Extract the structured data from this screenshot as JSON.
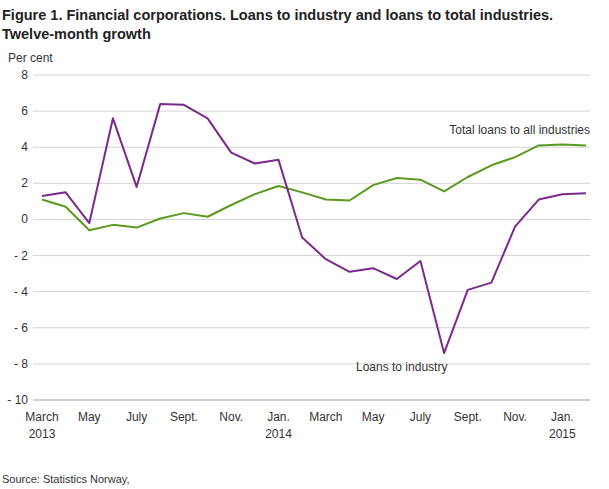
{
  "chart_data": {
    "type": "line",
    "title": "Figure 1. Financial corporations. Loans to industry and loans to total industries.",
    "subtitle": "Twelve-month growth",
    "y_label": "Per cent",
    "source": "Source: Statistics Norway,",
    "categories": [
      "March 2013",
      null,
      "May",
      null,
      "July",
      null,
      "Sept.",
      null,
      "Nov.",
      null,
      "Jan. 2014",
      null,
      "March",
      null,
      "May",
      null,
      "July",
      null,
      "Sept.",
      null,
      "Nov.",
      null,
      "Jan. 2015",
      null
    ],
    "series": [
      {
        "name": "Total loans to all industries",
        "color": "#5a9a1e",
        "values": [
          1.1,
          0.7,
          -0.6,
          -0.3,
          -0.45,
          0.05,
          0.35,
          0.15,
          0.8,
          1.4,
          1.85,
          1.5,
          1.1,
          1.05,
          1.9,
          2.3,
          2.2,
          1.55,
          2.35,
          3.0,
          3.45,
          4.1,
          4.15,
          4.1
        ]
      },
      {
        "name": "Loans to industry",
        "color": "#7b2a8c",
        "values": [
          1.3,
          1.5,
          -0.2,
          5.6,
          1.8,
          6.4,
          6.35,
          5.6,
          3.7,
          3.1,
          3.3,
          -1.0,
          -2.2,
          -2.9,
          -2.7,
          -3.3,
          -2.3,
          -7.4,
          -3.9,
          -3.5,
          -0.4,
          1.1,
          1.4,
          1.45
        ]
      }
    ],
    "ylim": [
      -10,
      8
    ],
    "yticks": [
      {
        "value": -10,
        "label": "- 10"
      },
      {
        "value": -8,
        "label": "- 8"
      },
      {
        "value": -6,
        "label": "- 6"
      },
      {
        "value": -4,
        "label": "- 4"
      },
      {
        "value": -2,
        "label": "- 2"
      },
      0,
      2,
      4,
      6,
      8
    ],
    "grid": true
  }
}
